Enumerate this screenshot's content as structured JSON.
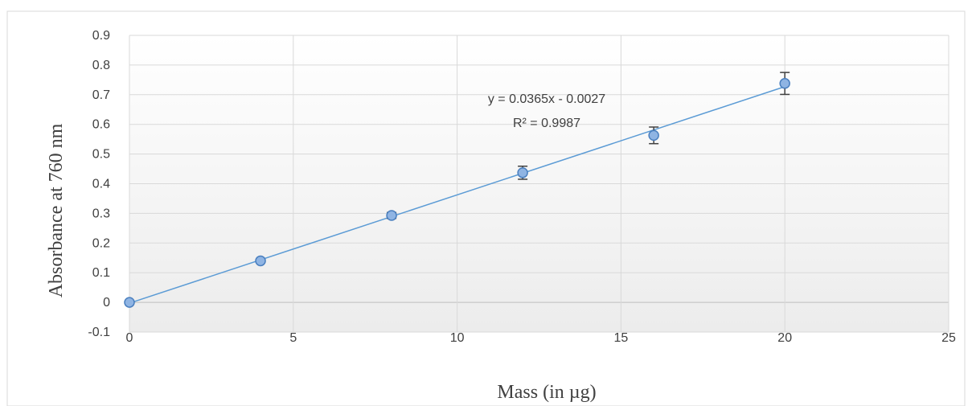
{
  "chart_data": {
    "type": "scatter",
    "title": "",
    "xlabel": "Mass (in µg)",
    "ylabel": "Absorbance at 760 nm",
    "xlim": [
      0,
      25
    ],
    "ylim": [
      -0.1,
      0.9
    ],
    "x_ticks": [
      0,
      5,
      10,
      15,
      20,
      25
    ],
    "y_ticks": [
      -0.1,
      0,
      0.1,
      0.2,
      0.3,
      0.4,
      0.5,
      0.6,
      0.7,
      0.8,
      0.9
    ],
    "x_tick_labels": [
      "0",
      "5",
      "10",
      "15",
      "20",
      "25"
    ],
    "y_tick_labels": [
      "-0.1",
      "0",
      "0.1",
      "0.2",
      "0.3",
      "0.4",
      "0.5",
      "0.6",
      "0.7",
      "0.8",
      "0.9"
    ],
    "grid": true,
    "series": [
      {
        "x": [
          0,
          4,
          8,
          12,
          16,
          20
        ],
        "y": [
          0.0,
          0.14,
          0.293,
          0.437,
          0.563,
          0.738
        ],
        "error": [
          0,
          0,
          0.01,
          0.022,
          0.028,
          0.037
        ],
        "color": "#5b9bd5"
      }
    ],
    "trendline": {
      "type": "linear",
      "slope": 0.0365,
      "intercept": -0.0027,
      "color": "#5b9bd5",
      "equation": "y = 0.0365x - 0.0027",
      "r2_label": "R² = 0.9987"
    }
  }
}
